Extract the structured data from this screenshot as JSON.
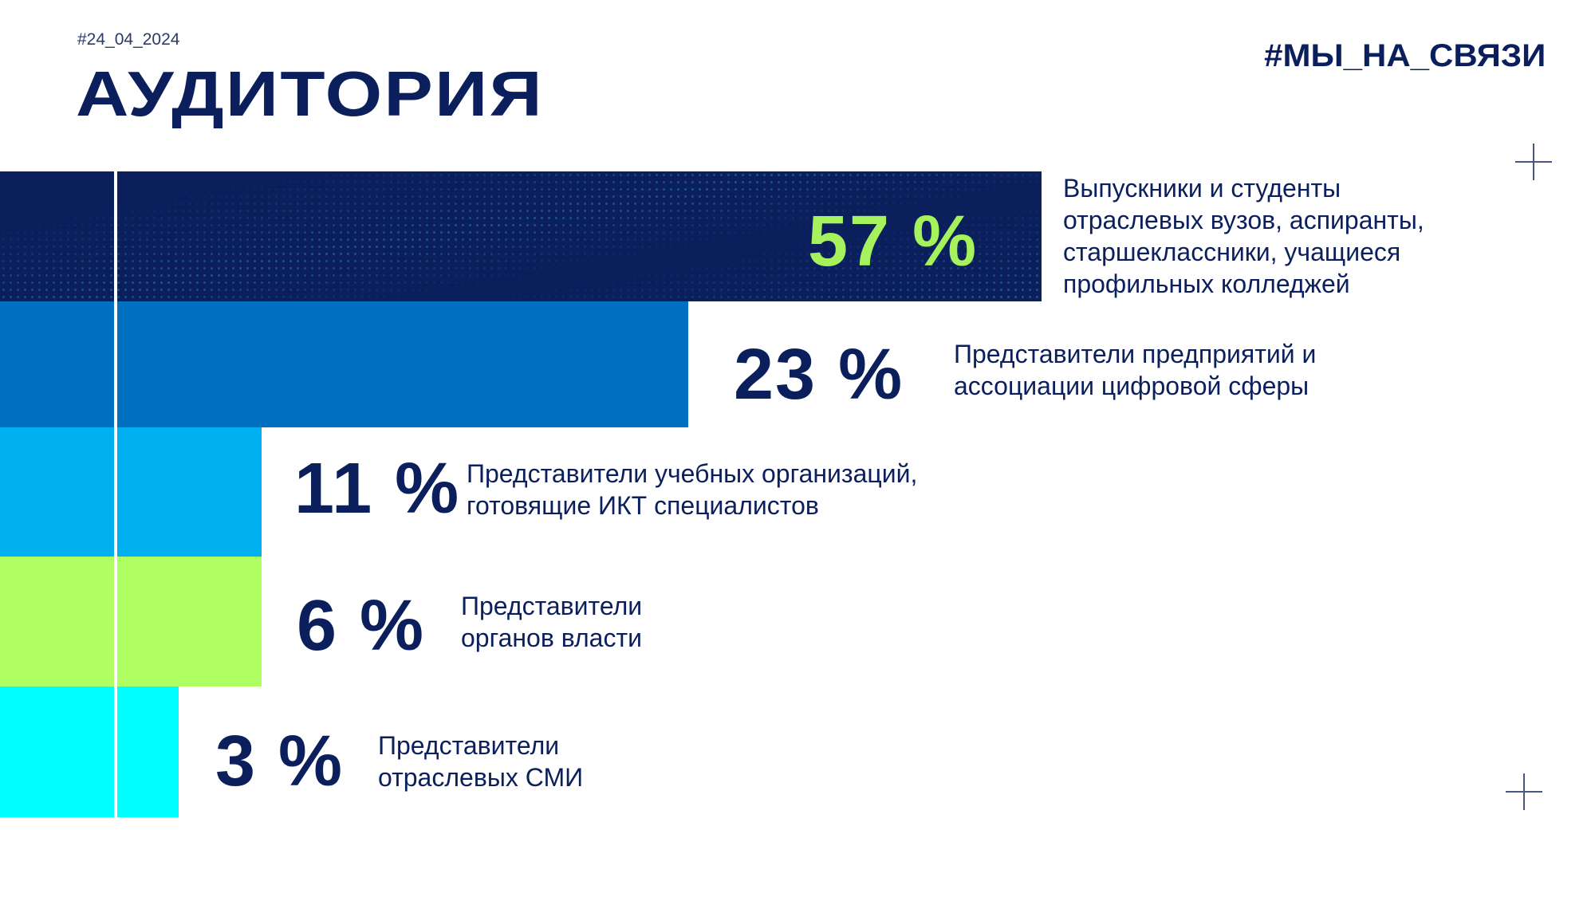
{
  "header": {
    "date_tag": "#24_04_2024",
    "title": "АУДИТОРИЯ",
    "hashtag": "#МЫ_НА_СВЯЗИ"
  },
  "colors": {
    "navy": "#0a1f5c",
    "blue": "#0070c0",
    "light_blue": "#00b0f0",
    "lime": "#b0ff62",
    "cyan": "#00ffff",
    "accent_green": "#a6f25c"
  },
  "chart_data": {
    "type": "bar",
    "title": "АУДИТОРИЯ",
    "categories": [
      "Выпускники и студенты отраслевых вузов, аспиранты, старшеклассники, учащиеся профильных колледжей",
      "Представители предприятий и ассоциации цифровой сферы",
      "Представители учебных организаций, готовящие ИКТ специалистов",
      "Представители органов власти",
      "Представители отраслевых СМИ"
    ],
    "values": [
      57,
      23,
      11,
      6,
      3
    ],
    "labels": [
      "57 %",
      "23 %",
      "11 %",
      "6 %",
      "3 %"
    ],
    "desc_lines": [
      [
        "Выпускники и студенты",
        "отраслевых вузов, аспиранты,",
        "старшеклассники, учащиеся",
        "профильных колледжей"
      ],
      [
        "Представители предприятий и",
        "ассоциации цифровой сферы"
      ],
      [
        "Представители учебных организаций,",
        "готовящие ИКТ специалистов"
      ],
      [
        "Представители",
        "органов власти"
      ],
      [
        "Представители",
        "отраслевых  СМИ"
      ]
    ]
  }
}
